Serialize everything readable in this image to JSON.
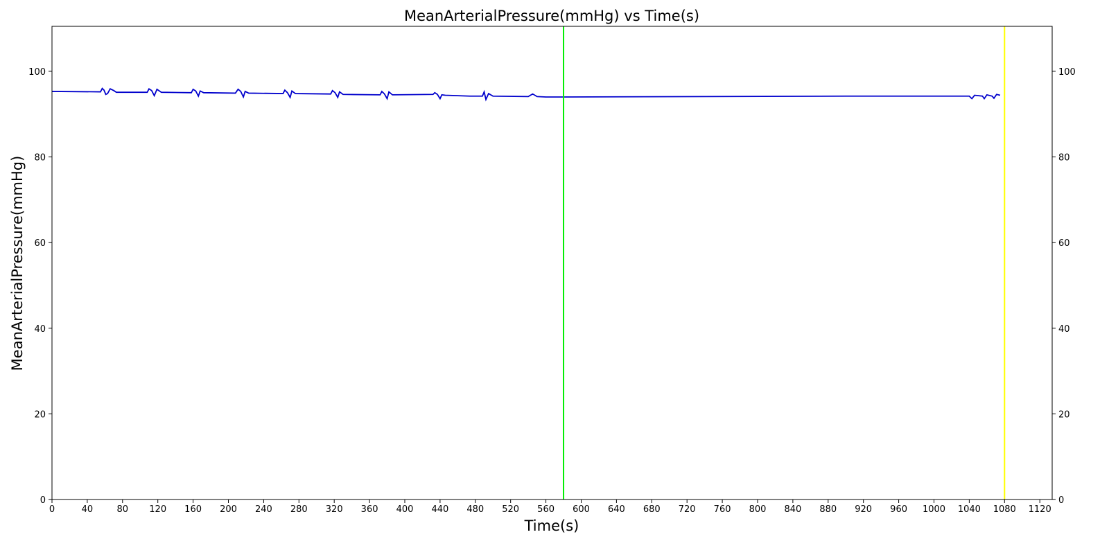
{
  "chart_data": {
    "type": "line",
    "title": "MeanArterialPressure(mmHg) vs Time(s)",
    "xlabel": "Time(s)",
    "ylabel": "MeanArterialPressure(mmHg)",
    "x": [
      0,
      55,
      57,
      59,
      61,
      63,
      66,
      70,
      73,
      108,
      110,
      113,
      116,
      119,
      124,
      158,
      160,
      163,
      166,
      168,
      172,
      208,
      211,
      214,
      217,
      219,
      223,
      262,
      264,
      267,
      270,
      272,
      276,
      316,
      318,
      321,
      324,
      326,
      330,
      372,
      374,
      377,
      380,
      382,
      386,
      432,
      434,
      437,
      440,
      442,
      446,
      474,
      488,
      490,
      492,
      495,
      500,
      540,
      545,
      550,
      560,
      580,
      900,
      1040,
      1043,
      1046,
      1055,
      1057,
      1060,
      1066,
      1068,
      1071,
      1075
    ],
    "series": [
      {
        "name": "MeanArterialPressure(mmHg)",
        "color": "#0000cc",
        "values": [
          95.3,
          95.2,
          96.0,
          95.6,
          94.6,
          94.8,
          95.9,
          95.5,
          95.1,
          95.1,
          95.9,
          95.5,
          94.3,
          95.8,
          95.1,
          95.0,
          95.8,
          95.4,
          94.2,
          95.4,
          95.0,
          94.9,
          95.8,
          95.3,
          94.0,
          95.3,
          94.9,
          94.8,
          95.6,
          95.0,
          93.9,
          95.4,
          94.8,
          94.7,
          95.5,
          95.0,
          93.9,
          95.2,
          94.6,
          94.5,
          95.3,
          94.7,
          93.6,
          95.2,
          94.5,
          94.6,
          95.0,
          94.6,
          93.6,
          94.5,
          94.4,
          94.2,
          94.2,
          95.2,
          93.4,
          94.8,
          94.2,
          94.1,
          94.7,
          94.1,
          94.0,
          94.0,
          94.2,
          94.2,
          93.6,
          94.4,
          94.2,
          93.6,
          94.5,
          94.2,
          93.7,
          94.6,
          94.4
        ]
      }
    ],
    "vlines": [
      {
        "x": 580,
        "color": "#00ee00"
      },
      {
        "x": 1080,
        "color": "#ffff00"
      }
    ],
    "xlim": [
      0,
      1134
    ],
    "ylim": [
      0,
      110.5
    ],
    "xticks": [
      0,
      40,
      80,
      120,
      160,
      200,
      240,
      280,
      320,
      360,
      400,
      440,
      480,
      520,
      560,
      600,
      640,
      680,
      720,
      760,
      800,
      840,
      880,
      920,
      960,
      1000,
      1040,
      1080,
      1120
    ],
    "yticks": [
      0,
      20,
      40,
      60,
      80,
      100
    ],
    "right_yaxis": true
  }
}
